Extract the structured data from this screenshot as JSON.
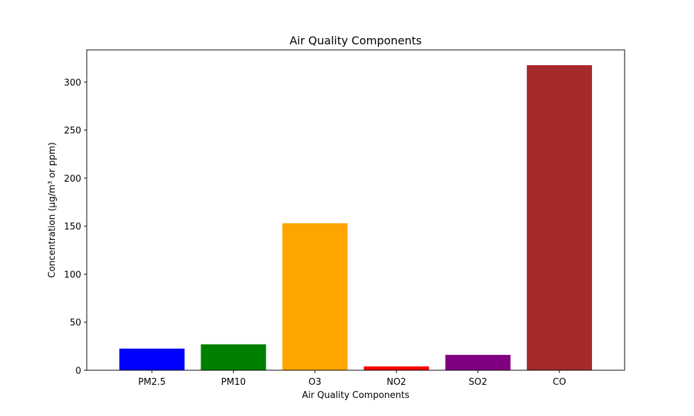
{
  "chart_data": {
    "type": "bar",
    "title": "Air Quality Components",
    "xlabel": "Air Quality Components",
    "ylabel": "Concentration (µg/m³ or ppm)",
    "categories": [
      "PM2.5",
      "PM10",
      "O3",
      "NO2",
      "SO2",
      "CO"
    ],
    "values": [
      22.5,
      27,
      153,
      4,
      16,
      317.5
    ],
    "colors": [
      "#0000ff",
      "#008000",
      "#ffa500",
      "#ff0000",
      "#800080",
      "#a52a2a"
    ],
    "ylim": [
      0,
      333.4
    ],
    "yticks": [
      0,
      50,
      100,
      150,
      200,
      250,
      300
    ],
    "grid": false,
    "legend": "none"
  }
}
